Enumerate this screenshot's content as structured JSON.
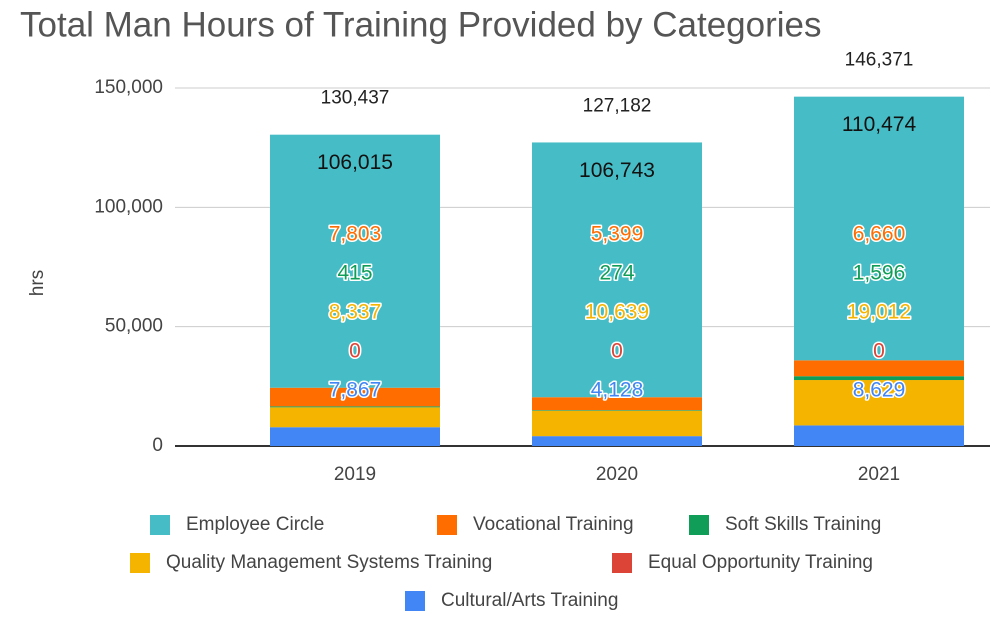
{
  "chart_data": {
    "type": "stacked_bar",
    "title": "Total Man Hours of Training Provided by Categories",
    "y_label": "hrs",
    "categories": [
      "2019",
      "2020",
      "2021"
    ],
    "series": [
      {
        "name": "Employee Circle",
        "color": "#46bdc6",
        "values": [
          106015,
          106743,
          110474
        ],
        "value_labels": [
          "106,015",
          "106,743",
          "110,474"
        ]
      },
      {
        "name": "Vocational Training",
        "color": "#ff6d01",
        "values": [
          7803,
          5399,
          6660
        ],
        "value_labels": [
          "7,803",
          "5,399",
          "6,660"
        ]
      },
      {
        "name": "Soft Skills Training",
        "color": "#0f9d58",
        "values": [
          415,
          274,
          1596
        ],
        "value_labels": [
          "415",
          "274",
          "1,596"
        ]
      },
      {
        "name": "Quality Management Systems Training",
        "color": "#f4b400",
        "values": [
          8337,
          10639,
          19012
        ],
        "value_labels": [
          "8,337",
          "10,639",
          "19,012"
        ]
      },
      {
        "name": "Equal Opportunity Training",
        "color": "#db4437",
        "values": [
          0,
          0,
          0
        ]
      },
      {
        "name": "Cultural/Arts Training",
        "color": "#4285f4",
        "values": [
          7867,
          4128,
          8629
        ],
        "value_labels": [
          "7,867",
          "4,128",
          "8,629"
        ]
      }
    ],
    "totals": [
      "130,437",
      "127,182",
      "146,371"
    ],
    "ylim": [
      0,
      150000
    ],
    "yticks": [
      0,
      {
        "value": 50000,
        "label": "50,000"
      },
      {
        "value": 100000,
        "label": "100,000"
      },
      {
        "value": 150000,
        "label": "150,000"
      }
    ],
    "grid": true
  }
}
